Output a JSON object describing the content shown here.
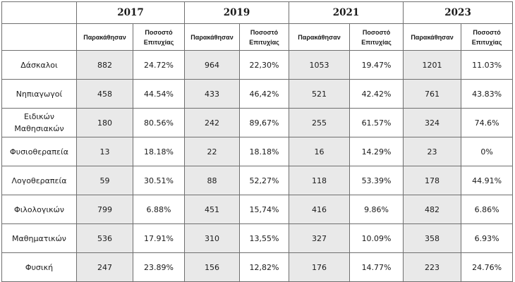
{
  "table": {
    "years": [
      "2017",
      "2019",
      "2021",
      "2023"
    ],
    "subheaders": {
      "count": "Παρακάθησαν",
      "rate_line1": "Ποσοστό",
      "rate_line2": "Επιτυχίας"
    },
    "rows": [
      {
        "label_lines": [
          "Δάσκαλοι"
        ],
        "cells": [
          {
            "count": "882",
            "rate": "24.72%"
          },
          {
            "count": "964",
            "rate": "22,30%"
          },
          {
            "count": "1053",
            "rate": "19.47%"
          },
          {
            "count": "1201",
            "rate": "11.03%"
          }
        ]
      },
      {
        "label_lines": [
          "Νηπιαγωγοί"
        ],
        "cells": [
          {
            "count": "458",
            "rate": "44.54%"
          },
          {
            "count": "433",
            "rate": "46,42%"
          },
          {
            "count": "521",
            "rate": "42.42%"
          },
          {
            "count": "761",
            "rate": "43.83%"
          }
        ]
      },
      {
        "label_lines": [
          "Ειδικών",
          "Μαθησιακών"
        ],
        "cells": [
          {
            "count": "180",
            "rate": "80.56%"
          },
          {
            "count": "242",
            "rate": "89,67%"
          },
          {
            "count": "255",
            "rate": "61.57%"
          },
          {
            "count": "324",
            "rate": "74.6%"
          }
        ]
      },
      {
        "label_lines": [
          "Φυσιοθεραπεία"
        ],
        "cells": [
          {
            "count": "13",
            "rate": "18.18%"
          },
          {
            "count": "22",
            "rate": "18.18%"
          },
          {
            "count": "16",
            "rate": "14.29%"
          },
          {
            "count": "23",
            "rate": "0%"
          }
        ]
      },
      {
        "label_lines": [
          "Λογοθεραπεία"
        ],
        "cells": [
          {
            "count": "59",
            "rate": "30.51%"
          },
          {
            "count": "88",
            "rate": "52,27%"
          },
          {
            "count": "118",
            "rate": "53.39%"
          },
          {
            "count": "178",
            "rate": "44.91%"
          }
        ]
      },
      {
        "label_lines": [
          "Φιλολογικών"
        ],
        "cells": [
          {
            "count": "799",
            "rate": "6.88%"
          },
          {
            "count": "451",
            "rate": "15,74%"
          },
          {
            "count": "416",
            "rate": "9.86%"
          },
          {
            "count": "482",
            "rate": "6.86%"
          }
        ]
      },
      {
        "label_lines": [
          "Μαθηματικών"
        ],
        "cells": [
          {
            "count": "536",
            "rate": "17.91%"
          },
          {
            "count": "310",
            "rate": "13,55%"
          },
          {
            "count": "327",
            "rate": "10.09%"
          },
          {
            "count": "358",
            "rate": "6.93%"
          }
        ]
      },
      {
        "label_lines": [
          "Φυσική"
        ],
        "cells": [
          {
            "count": "247",
            "rate": "23.89%"
          },
          {
            "count": "156",
            "rate": "12,82%"
          },
          {
            "count": "176",
            "rate": "14.77%"
          },
          {
            "count": "223",
            "rate": "24.76%"
          }
        ]
      }
    ]
  }
}
